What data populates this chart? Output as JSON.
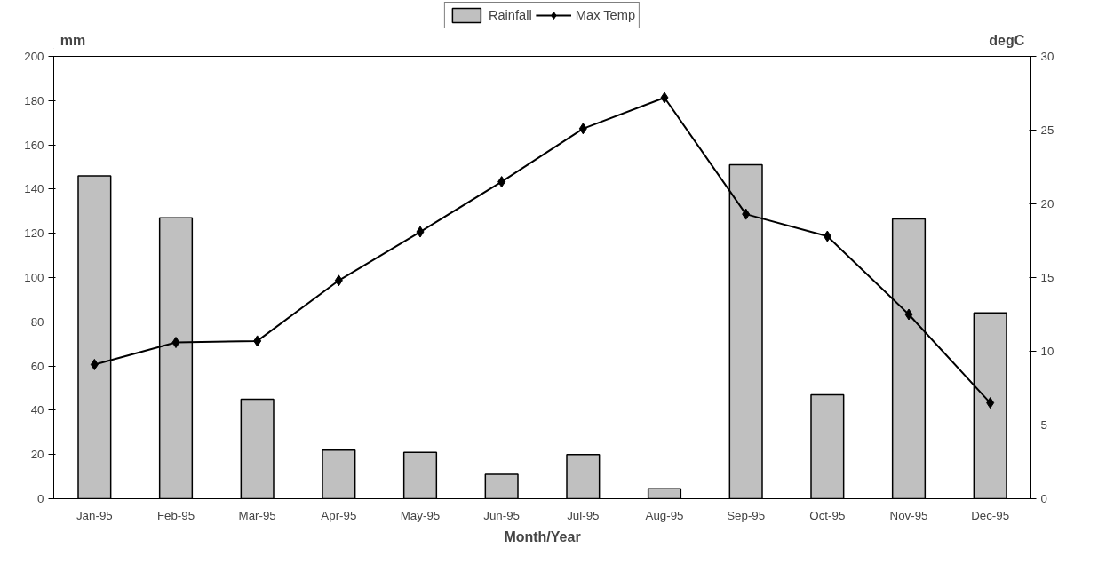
{
  "chart_data": {
    "type": "bar",
    "xlabel": "Month/Year",
    "ylabel": "mm",
    "y2label": "degC",
    "categories": [
      "Jan-95",
      "Feb-95",
      "Mar-95",
      "Apr-95",
      "May-95",
      "Jun-95",
      "Jul-95",
      "Aug-95",
      "Sep-95",
      "Oct-95",
      "Nov-95",
      "Dec-95"
    ],
    "series": [
      {
        "name": "Rainfall",
        "color": "#c0c0c0",
        "values": [
          146,
          127,
          45,
          22,
          21,
          11,
          20,
          4.5,
          151,
          47,
          126.5,
          84
        ]
      },
      {
        "name": "Max Temp",
        "type": "line",
        "axis": "y2",
        "color": "#000000",
        "marker": "diamond",
        "values": [
          9.1,
          10.6,
          10.7,
          14.8,
          18.1,
          21.5,
          25.1,
          27.2,
          19.3,
          17.8,
          12.5,
          6.5
        ]
      }
    ],
    "ylim": [
      0,
      200
    ],
    "yticks": [
      0,
      20,
      40,
      60,
      80,
      100,
      120,
      140,
      160,
      180,
      200
    ],
    "y2lim": [
      0,
      30
    ],
    "y2ticks": [
      0,
      5,
      10,
      15,
      20,
      25,
      30
    ],
    "legend": "top",
    "grid": false
  }
}
